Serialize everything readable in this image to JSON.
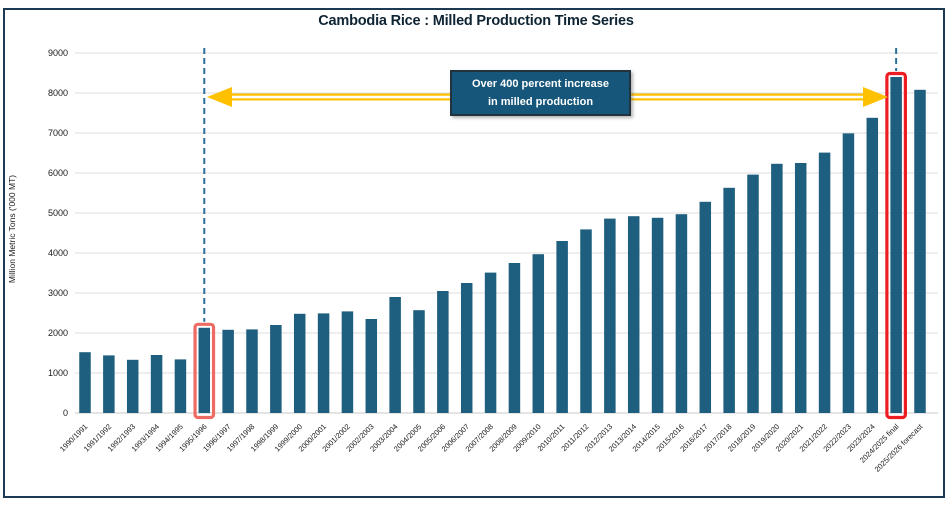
{
  "chart": {
    "title": "Cambodia Rice : Milled Production Time Series",
    "ylabel": "Million Metric Tons ('000 MT)"
  },
  "annotation": {
    "line1": "Over 400 percent increase",
    "line2": "in milled production"
  },
  "chart_data": {
    "type": "bar",
    "title": "Cambodia Rice : Milled Production Time Series",
    "xlabel": "",
    "ylabel": "Million Metric Tons ('000 MT)",
    "ylim": [
      0,
      9000
    ],
    "ytick_step": 1000,
    "grid": true,
    "legend": "none",
    "categories": [
      "1990/1991",
      "1991/1992",
      "1992/1993",
      "1993/1994",
      "1994/1995",
      "1995/1996",
      "1996/1997",
      "1997/1998",
      "1998/1999",
      "1999/2000",
      "2000/2001",
      "2001/2002",
      "2002/2003",
      "2003/2004",
      "2004/2005",
      "2005/2006",
      "2006/2007",
      "2007/2008",
      "2008/2009",
      "2009/2010",
      "2010/2011",
      "2011/2012",
      "2012/2013",
      "2013/2014",
      "2014/2015",
      "2015/2016",
      "2016/2017",
      "2017/2018",
      "2018/2019",
      "2019/2020",
      "2020/2021",
      "2021/2022",
      "2022/2023",
      "2023/2024",
      "2024/2025 final",
      "2025/2026 forecast"
    ],
    "values": [
      1520,
      1440,
      1330,
      1450,
      1340,
      2130,
      2080,
      2090,
      2200,
      2480,
      2490,
      2540,
      2350,
      2900,
      2570,
      3050,
      3250,
      3510,
      3750,
      3970,
      4300,
      4590,
      4860,
      4920,
      4880,
      4970,
      5280,
      5630,
      5960,
      6230,
      6250,
      6510,
      6990,
      7380,
      8400,
      8080
    ],
    "bar_color": "#1e5e7e",
    "gridline_color": "#dcdcdc",
    "axis_text_color": "#1a1a1a",
    "highlights": [
      {
        "category": "1995/1996",
        "index": 5,
        "outline_color": "#ee6b63",
        "guide_line": true
      },
      {
        "category": "2024/2025 final",
        "index": 34,
        "outline_color": "#ec1c22",
        "guide_line": true
      }
    ],
    "annotation": {
      "text": "Over 400 percent increase in milled production",
      "box_fill": "#15567a",
      "text_color": "#ffffff",
      "arrow_color": "#ffc000",
      "dashed_line_color": "#2b6e99"
    }
  }
}
